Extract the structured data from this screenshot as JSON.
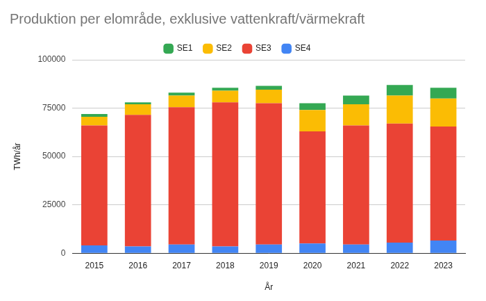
{
  "chart_data": {
    "type": "bar",
    "title": "Produktion per elområde, exklusive vattenkraft/värmekraft",
    "x_label": "År",
    "y_label": "TWh/år",
    "categories": [
      "2015",
      "2016",
      "2017",
      "2018",
      "2019",
      "2020",
      "2021",
      "2022",
      "2023"
    ],
    "series": [
      {
        "name": "SE1",
        "color": "#34a853",
        "values": [
          1500,
          1000,
          1500,
          1500,
          2000,
          3500,
          4500,
          5500,
          5500
        ]
      },
      {
        "name": "SE2",
        "color": "#fbbc04",
        "values": [
          4500,
          5500,
          6000,
          6000,
          7000,
          11000,
          11000,
          14500,
          14500
        ]
      },
      {
        "name": "SE3",
        "color": "#ea4335",
        "values": [
          62000,
          68000,
          71000,
          74500,
          73000,
          58000,
          61500,
          61500,
          59000
        ]
      },
      {
        "name": "SE4",
        "color": "#4285f4",
        "values": [
          4000,
          3500,
          4500,
          3500,
          4500,
          5000,
          4500,
          5500,
          6500
        ]
      }
    ],
    "stacked": true,
    "ylim": [
      0,
      100000
    ],
    "yticks": [
      0,
      25000,
      50000,
      75000,
      100000
    ],
    "grid": true,
    "legend": "top"
  }
}
